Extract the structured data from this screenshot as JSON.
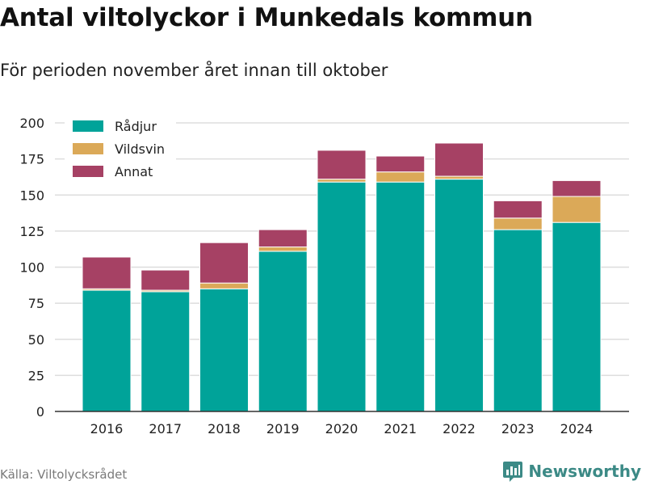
{
  "header": {
    "title": "Antal viltolyckor i Munkedals kommun",
    "subtitle": "För perioden november året innan till oktober"
  },
  "footer": {
    "source": "Källa: Viltolycksrådet",
    "brand": "Newsworthy",
    "brand_icon": "bar-chart-icon"
  },
  "colors": {
    "Rådjur": "#00a399",
    "Vildsvin": "#dba958",
    "Annat": "#a64164",
    "grid": "#dddddd",
    "axis": "#333333",
    "brand": "#3c8a86"
  },
  "chart_data": {
    "type": "bar",
    "stacked": true,
    "title": "Antal viltolyckor i Munkedals kommun",
    "subtitle": "För perioden november året innan till oktober",
    "xlabel": "",
    "ylabel": "",
    "categories": [
      "2016",
      "2017",
      "2018",
      "2019",
      "2020",
      "2021",
      "2022",
      "2023",
      "2024"
    ],
    "series": [
      {
        "name": "Rådjur",
        "values": [
          84,
          83,
          85,
          111,
          159,
          159,
          161,
          126,
          131
        ]
      },
      {
        "name": "Vildsvin",
        "values": [
          1,
          1,
          4,
          3,
          2,
          7,
          2,
          8,
          18
        ]
      },
      {
        "name": "Annat",
        "values": [
          22,
          14,
          28,
          12,
          20,
          11,
          23,
          12,
          11
        ]
      }
    ],
    "ylim": [
      0,
      200
    ],
    "yticks": [
      0,
      25,
      50,
      75,
      100,
      125,
      150,
      175,
      200
    ],
    "grid": true,
    "legend": "top-left"
  }
}
